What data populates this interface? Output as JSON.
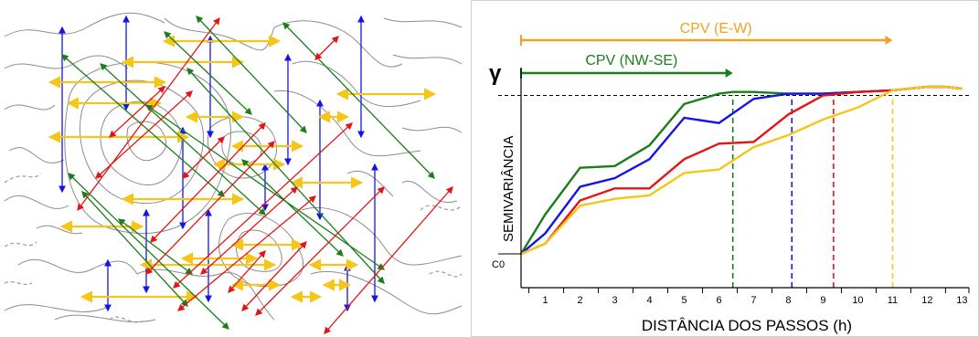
{
  "colors": {
    "green": "#1a7f1a",
    "blue": "#1414e6",
    "red": "#e61414",
    "yellow": "#f5c518",
    "orange": "#f5a020",
    "contour": "#8c8c8c"
  },
  "map": {
    "arrows": {
      "blue_ns": [
        [
          68,
          30,
          68,
          210
        ],
        [
          138,
          18,
          138,
          120
        ],
        [
          395,
          18,
          395,
          150
        ],
        [
          230,
          40,
          230,
          150
        ],
        [
          315,
          60,
          315,
          180
        ],
        [
          350,
          110,
          350,
          240
        ],
        [
          200,
          140,
          200,
          250
        ],
        [
          410,
          180,
          410,
          330
        ],
        [
          228,
          230,
          228,
          330
        ],
        [
          160,
          230,
          160,
          320
        ],
        [
          118,
          285,
          118,
          340
        ],
        [
          380,
          290,
          380,
          340
        ],
        [
          290,
          180,
          290,
          230
        ]
      ],
      "yellow_ew": [
        [
          180,
          45,
          305,
          45
        ],
        [
          135,
          68,
          265,
          68
        ],
        [
          55,
          90,
          180,
          90
        ],
        [
          370,
          103,
          475,
          103
        ],
        [
          75,
          113,
          175,
          113
        ],
        [
          205,
          128,
          265,
          128
        ],
        [
          350,
          128,
          380,
          128
        ],
        [
          55,
          150,
          205,
          150
        ],
        [
          255,
          160,
          330,
          160
        ],
        [
          235,
          180,
          310,
          180
        ],
        [
          320,
          200,
          395,
          200
        ],
        [
          135,
          218,
          265,
          218
        ],
        [
          68,
          248,
          155,
          248
        ],
        [
          255,
          268,
          330,
          268
        ],
        [
          200,
          283,
          280,
          283
        ],
        [
          155,
          290,
          300,
          290
        ],
        [
          340,
          290,
          390,
          290
        ],
        [
          255,
          312,
          305,
          312
        ],
        [
          355,
          312,
          382,
          312
        ],
        [
          90,
          325,
          215,
          325
        ],
        [
          320,
          325,
          350,
          325
        ]
      ],
      "green_nwse": [
        [
          180,
          35,
          275,
          125
        ],
        [
          215,
          18,
          335,
          145
        ],
        [
          310,
          25,
          475,
          195
        ],
        [
          68,
          60,
          245,
          215
        ],
        [
          110,
          70,
          290,
          235
        ],
        [
          160,
          115,
          420,
          295
        ],
        [
          205,
          75,
          420,
          310
        ],
        [
          75,
          190,
          250,
          360
        ],
        [
          90,
          210,
          205,
          335
        ],
        [
          265,
          175,
          375,
          280
        ],
        [
          130,
          240,
          210,
          300
        ]
      ],
      "red_swne": [
        [
          85,
          230,
          240,
          20
        ],
        [
          105,
          195,
          210,
          100
        ],
        [
          120,
          150,
          180,
          95
        ],
        [
          165,
          265,
          290,
          135
        ],
        [
          200,
          195,
          245,
          150
        ],
        [
          160,
          300,
          300,
          155
        ],
        [
          190,
          315,
          385,
          135
        ],
        [
          220,
          300,
          325,
          205
        ],
        [
          195,
          340,
          345,
          215
        ],
        [
          250,
          320,
          290,
          275
        ],
        [
          265,
          340,
          335,
          265
        ],
        [
          280,
          345,
          420,
          205
        ],
        [
          355,
          365,
          495,
          205
        ],
        [
          345,
          65,
          370,
          40
        ]
      ]
    }
  },
  "chart_data": {
    "type": "line",
    "xlabel": "DISTÂNCIA DOS PASSOS (h)",
    "ylabel": "SEMIVARIÂNCIA",
    "gamma_label": "γ",
    "c0_label": "C0",
    "xticks": [
      "1",
      "2",
      "3",
      "4",
      "5",
      "6",
      "7",
      "8",
      "9",
      "10",
      "11",
      "12",
      "13"
    ],
    "xlim": [
      0.3,
      13.2
    ],
    "ylim": [
      0,
      1.05
    ],
    "sill": 0.92,
    "c0": 0.0,
    "series": [
      {
        "color": "green",
        "x": [
          0.3,
          1,
          2,
          3,
          4,
          5,
          6,
          6.4,
          7,
          8,
          9,
          10,
          11,
          12,
          12.5,
          13
        ],
        "y": [
          0,
          0.23,
          0.5,
          0.51,
          0.63,
          0.87,
          0.93,
          0.94,
          0.94,
          0.93,
          0.93,
          0.94,
          0.95,
          0.97,
          0.97,
          0.96
        ]
      },
      {
        "color": "blue",
        "x": [
          0.3,
          1,
          2,
          3,
          4,
          5,
          6,
          7,
          8,
          9,
          10,
          11,
          12,
          12.5,
          13
        ],
        "y": [
          0,
          0.12,
          0.39,
          0.44,
          0.55,
          0.79,
          0.76,
          0.9,
          0.93,
          0.93,
          0.94,
          0.95,
          0.97,
          0.97,
          0.96
        ]
      },
      {
        "color": "red",
        "x": [
          0.3,
          1,
          2,
          3,
          4,
          5,
          6,
          7,
          8,
          9,
          10,
          11,
          12,
          12.5,
          13
        ],
        "y": [
          0,
          0.06,
          0.31,
          0.38,
          0.38,
          0.55,
          0.64,
          0.65,
          0.81,
          0.92,
          0.94,
          0.95,
          0.97,
          0.97,
          0.96
        ]
      },
      {
        "color": "yellow",
        "x": [
          0.3,
          1,
          2,
          3,
          4,
          5,
          6,
          7,
          8,
          9,
          10,
          11,
          12,
          12.5,
          13
        ],
        "y": [
          0,
          0.06,
          0.28,
          0.32,
          0.34,
          0.47,
          0.49,
          0.62,
          0.69,
          0.78,
          0.85,
          0.95,
          0.97,
          0.97,
          0.96
        ]
      }
    ],
    "ranges": [
      {
        "label": "CPV (E-W)",
        "color": "orange",
        "x": 11
      },
      {
        "label": "CPV (NW-SE)",
        "color": "green",
        "x": 6.4
      }
    ],
    "range_markers": [
      {
        "color": "green",
        "x": 6.4
      },
      {
        "color": "blue",
        "x": 8.1
      },
      {
        "color": "red",
        "x": 9.3
      },
      {
        "color": "yellow",
        "x": 11
      }
    ]
  }
}
